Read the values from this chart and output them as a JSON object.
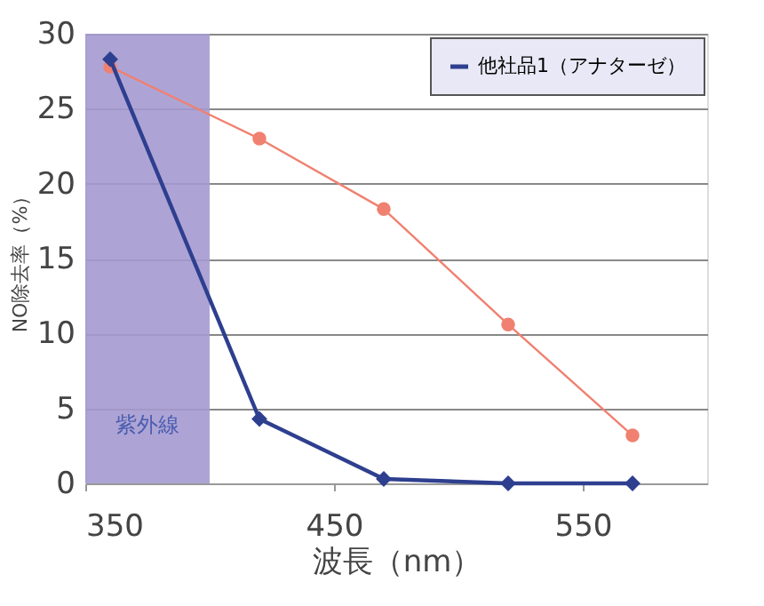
{
  "chart_data": {
    "type": "line",
    "xlabel": "波長（nm）",
    "ylabel": "NO除去率（%）",
    "x": [
      360,
      420,
      470,
      520,
      570
    ],
    "series": [
      {
        "color": "#f08070",
        "marker": "circle",
        "values": [
          27.8,
          23.0,
          18.3,
          10.6,
          3.2
        ]
      },
      {
        "name": "他社品1（アナターゼ）",
        "color": "#2e3f8f",
        "marker": "diamond",
        "values": [
          28.3,
          4.3,
          0.3,
          0.0,
          0.0
        ]
      }
    ],
    "xlim": [
      350,
      600
    ],
    "xticks": [
      350,
      450,
      550
    ],
    "ylim": [
      0,
      30
    ],
    "yticks": [
      0,
      5,
      10,
      15,
      20,
      25,
      30
    ],
    "bands": [
      {
        "axis": "x",
        "from": 350,
        "to": 400,
        "label": "紫外線",
        "color": "#a49ad0"
      }
    ],
    "grid": "y",
    "legend": "top right"
  }
}
